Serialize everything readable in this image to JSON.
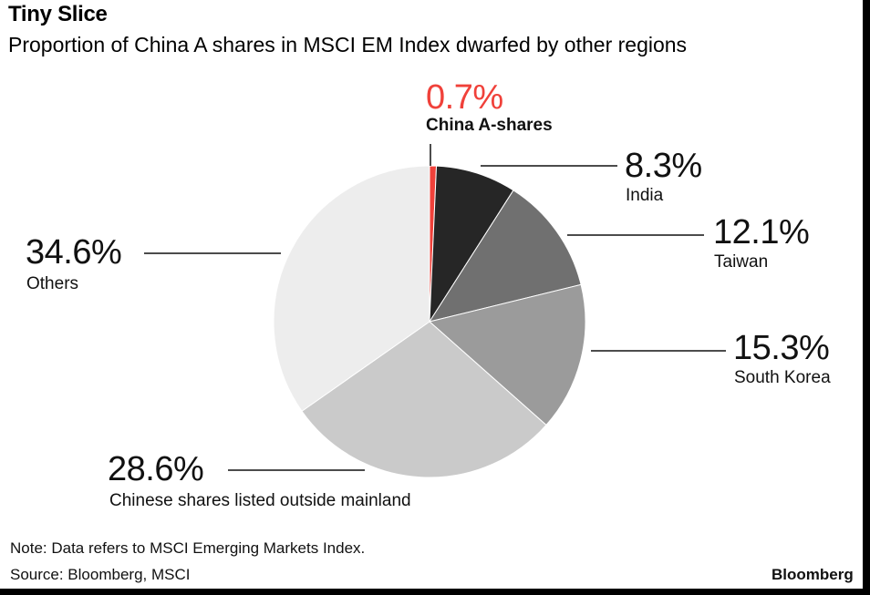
{
  "chart_data": {
    "type": "pie",
    "title": "Tiny Slice",
    "subtitle": "Proportion of China A shares in MSCI EM Index dwarfed by other regions",
    "slices": [
      {
        "label": "China A-shares",
        "value": 0.7,
        "value_label": "0.7%",
        "color": "#f0413a"
      },
      {
        "label": "India",
        "value": 8.3,
        "value_label": "8.3%",
        "color": "#262626"
      },
      {
        "label": "Taiwan",
        "value": 12.1,
        "value_label": "12.1%",
        "color": "#707070"
      },
      {
        "label": "South Korea",
        "value": 15.3,
        "value_label": "15.3%",
        "color": "#9b9b9b"
      },
      {
        "label": "Chinese shares listed outside mainland",
        "value": 28.6,
        "value_label": "28.6%",
        "color": "#cacaca"
      },
      {
        "label": "Others",
        "value": 34.6,
        "value_label": "34.6%",
        "color": "#ededed"
      }
    ]
  },
  "footer": {
    "note": "Note: Data refers to MSCI Emerging Markets Index.",
    "source": "Source: Bloomberg, MSCI",
    "brand": "Bloomberg"
  }
}
